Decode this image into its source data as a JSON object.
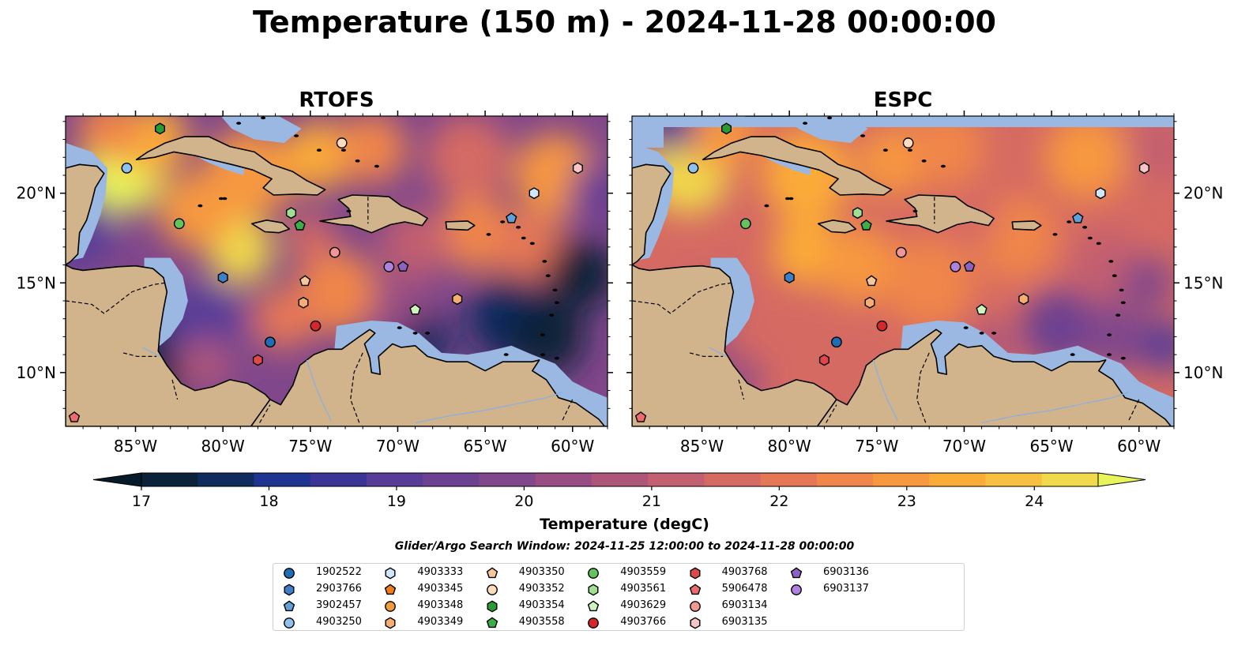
{
  "title": "Temperature (150 m) - 2024-11-28 00:00:00",
  "panels": [
    {
      "key": "rtofs",
      "title": "RTOFS"
    },
    {
      "key": "espc",
      "title": "ESPC"
    }
  ],
  "lon_ticks": [
    "85°W",
    "80°W",
    "75°W",
    "70°W",
    "65°W",
    "60°W"
  ],
  "lat_ticks": [
    "20°N",
    "15°N",
    "10°N"
  ],
  "colorbar": {
    "label": "Temperature (degC)",
    "ticks": [
      "17",
      "18",
      "19",
      "20",
      "21",
      "22",
      "23",
      "24"
    ],
    "range": [
      17,
      24.5
    ],
    "colors": [
      "#0b2238",
      "#0f2c5e",
      "#1f3391",
      "#3b3596",
      "#573c98",
      "#6b4192",
      "#80478b",
      "#984e83",
      "#ae567a",
      "#c25f70",
      "#d56a63",
      "#e57756",
      "#f0864a",
      "#f7983f",
      "#fbab38",
      "#f8c040",
      "#f0d94c"
    ],
    "extend_low": "#061a2a",
    "extend_high": "#e8f55a"
  },
  "search_window": "Glider/Argo Search Window: 2024-11-25 12:00:00 to 2024-11-28 00:00:00",
  "colors": {
    "land": "#d2b48c",
    "shallow": "#9ab8e2",
    "deep_cold": "#071f33"
  },
  "legend": [
    {
      "id": "1902522",
      "marker": "circle",
      "color": "#1f6db5"
    },
    {
      "id": "2903766",
      "marker": "hexagon",
      "color": "#3e7fc9"
    },
    {
      "id": "3902457",
      "marker": "pentagon",
      "color": "#5fa0d8"
    },
    {
      "id": "4903250",
      "marker": "circle",
      "color": "#8fc1ec"
    },
    {
      "id": "4903333",
      "marker": "hexagon",
      "color": "#cfe6fb"
    },
    {
      "id": "4903345",
      "marker": "pentagon",
      "color": "#f07d1a"
    },
    {
      "id": "4903348",
      "marker": "circle",
      "color": "#f39a3c"
    },
    {
      "id": "4903349",
      "marker": "hexagon",
      "color": "#f6ad72"
    },
    {
      "id": "4903350",
      "marker": "pentagon",
      "color": "#f8c797"
    },
    {
      "id": "4903352",
      "marker": "circle",
      "color": "#fbdcbc"
    },
    {
      "id": "4903354",
      "marker": "hexagon",
      "color": "#2a9a35"
    },
    {
      "id": "4903558",
      "marker": "pentagon",
      "color": "#3cae45"
    },
    {
      "id": "4903559",
      "marker": "circle",
      "color": "#64c45c"
    },
    {
      "id": "4903561",
      "marker": "hexagon",
      "color": "#9ee08f"
    },
    {
      "id": "4903629",
      "marker": "pentagon",
      "color": "#cdf3be"
    },
    {
      "id": "4903766",
      "marker": "circle",
      "color": "#d62728"
    },
    {
      "id": "4903768",
      "marker": "hexagon",
      "color": "#e0474a"
    },
    {
      "id": "5906478",
      "marker": "pentagon",
      "color": "#ec6b6d"
    },
    {
      "id": "6903134",
      "marker": "circle",
      "color": "#f19696"
    },
    {
      "id": "6903135",
      "marker": "hexagon",
      "color": "#f7c5c5"
    },
    {
      "id": "6903136",
      "marker": "pentagon",
      "color": "#8e62c3"
    },
    {
      "id": "6903137",
      "marker": "circle",
      "color": "#ad82e0"
    }
  ],
  "floats_rtofs": [
    {
      "id": "4903354",
      "lon": -83.6,
      "lat": 23.6
    },
    {
      "id": "4903250",
      "lon": -85.5,
      "lat": 21.4
    },
    {
      "id": "4903352",
      "lon": -73.2,
      "lat": 22.8
    },
    {
      "id": "6903135",
      "lon": -59.7,
      "lat": 21.4
    },
    {
      "id": "4903333",
      "lon": -62.2,
      "lat": 20.0
    },
    {
      "id": "4903559",
      "lon": -82.5,
      "lat": 18.3
    },
    {
      "id": "4903561",
      "lon": -76.1,
      "lat": 18.9
    },
    {
      "id": "4903558",
      "lon": -75.6,
      "lat": 18.2
    },
    {
      "id": "3902457",
      "lon": -63.5,
      "lat": 18.6
    },
    {
      "id": "6903134",
      "lon": -73.6,
      "lat": 16.7
    },
    {
      "id": "6903137",
      "lon": -70.5,
      "lat": 15.9
    },
    {
      "id": "6903136",
      "lon": -69.7,
      "lat": 15.9
    },
    {
      "id": "2903766",
      "lon": -80.0,
      "lat": 15.3
    },
    {
      "id": "4903350",
      "lon": -75.3,
      "lat": 15.1
    },
    {
      "id": "4903349",
      "lon": -75.4,
      "lat": 13.9
    },
    {
      "id": "4903349",
      "lon": -66.6,
      "lat": 14.1
    },
    {
      "id": "4903629",
      "lon": -69.0,
      "lat": 13.5
    },
    {
      "id": "4903766",
      "lon": -74.7,
      "lat": 12.6
    },
    {
      "id": "1902522",
      "lon": -77.3,
      "lat": 11.7
    },
    {
      "id": "4903768",
      "lon": -78.0,
      "lat": 10.7
    },
    {
      "id": "5906478",
      "lon": -88.5,
      "lat": 7.5
    }
  ],
  "floats_espc": [
    {
      "id": "4903354",
      "lon": -83.6,
      "lat": 23.6
    },
    {
      "id": "4903250",
      "lon": -85.5,
      "lat": 21.4
    },
    {
      "id": "4903352",
      "lon": -73.2,
      "lat": 22.8
    },
    {
      "id": "6903135",
      "lon": -59.7,
      "lat": 21.4
    },
    {
      "id": "4903333",
      "lon": -62.2,
      "lat": 20.0
    },
    {
      "id": "4903559",
      "lon": -82.5,
      "lat": 18.3
    },
    {
      "id": "4903561",
      "lon": -76.1,
      "lat": 18.9
    },
    {
      "id": "4903558",
      "lon": -75.6,
      "lat": 18.2
    },
    {
      "id": "3902457",
      "lon": -63.5,
      "lat": 18.6
    },
    {
      "id": "6903134",
      "lon": -73.6,
      "lat": 16.7
    },
    {
      "id": "6903137",
      "lon": -70.5,
      "lat": 15.9
    },
    {
      "id": "6903136",
      "lon": -69.7,
      "lat": 15.9
    },
    {
      "id": "2903766",
      "lon": -80.0,
      "lat": 15.3
    },
    {
      "id": "4903350",
      "lon": -75.3,
      "lat": 15.1
    },
    {
      "id": "4903349",
      "lon": -75.4,
      "lat": 13.9
    },
    {
      "id": "4903349",
      "lon": -66.6,
      "lat": 14.1
    },
    {
      "id": "4903629",
      "lon": -69.0,
      "lat": 13.5
    },
    {
      "id": "4903766",
      "lon": -74.7,
      "lat": 12.6
    },
    {
      "id": "1902522",
      "lon": -77.3,
      "lat": 11.7
    },
    {
      "id": "4903768",
      "lon": -78.0,
      "lat": 10.7
    },
    {
      "id": "5906478",
      "lon": -88.5,
      "lat": 7.5
    }
  ]
}
